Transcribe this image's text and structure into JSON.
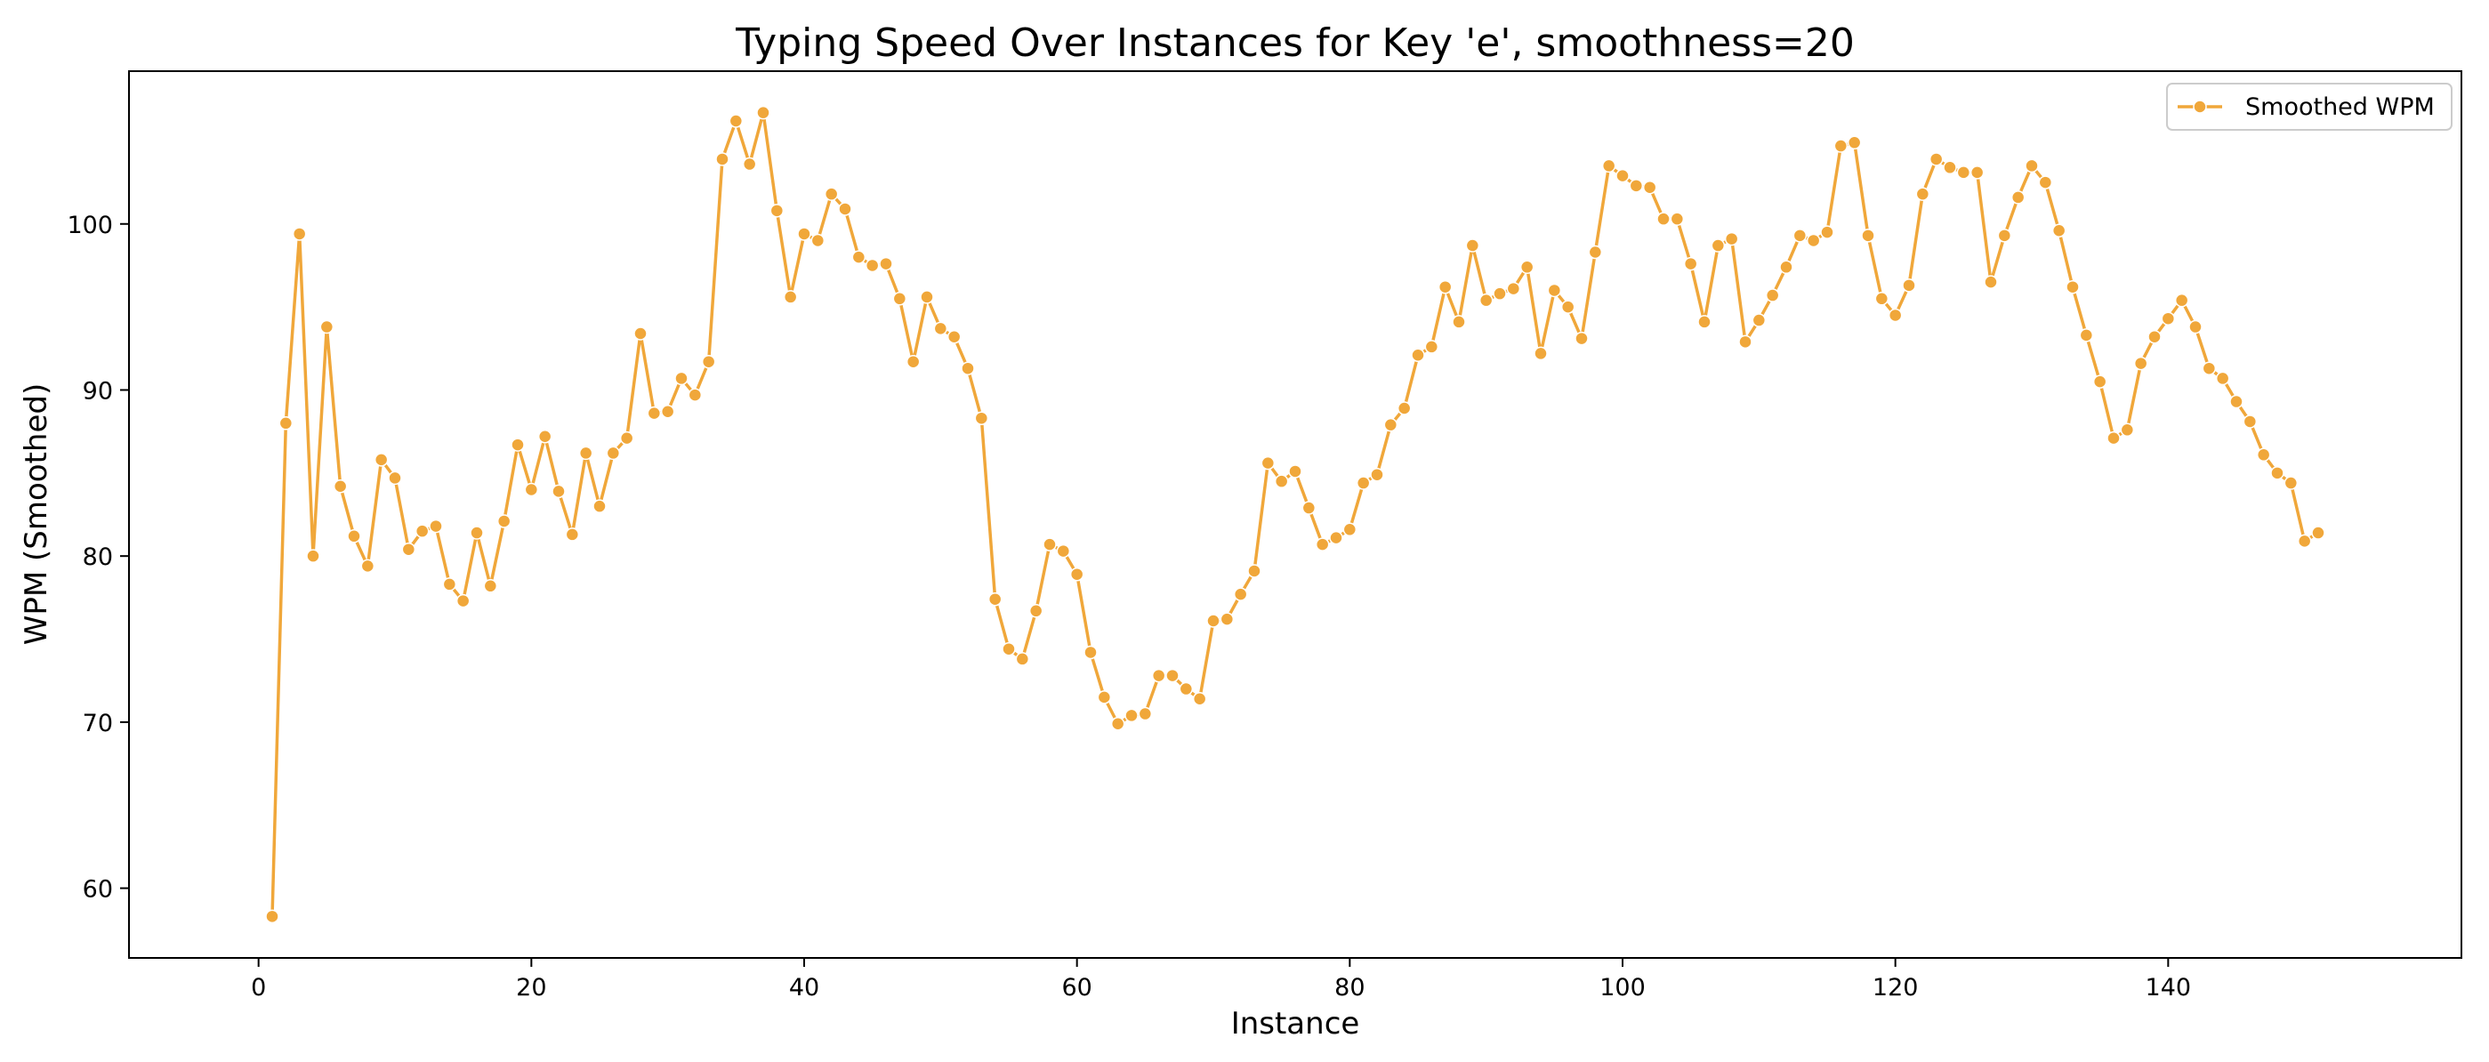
{
  "chart_data": {
    "type": "line",
    "title": "Typing Speed Over Instances for Key 'e', smoothness=20",
    "xlabel": "Instance",
    "ylabel": "WPM (Smoothed)",
    "xlim": [
      -9.5,
      161.5
    ],
    "ylim": [
      55.8,
      109.2
    ],
    "xticks": [
      0,
      20,
      40,
      60,
      80,
      100,
      120,
      140
    ],
    "yticks": [
      60,
      70,
      80,
      90,
      100
    ],
    "grid": false,
    "legend_position": "top-right",
    "color": "#F0A73A",
    "series": [
      {
        "name": "Smoothed WPM",
        "x": [
          1,
          2,
          3,
          4,
          5,
          6,
          7,
          8,
          9,
          10,
          11,
          12,
          13,
          14,
          15,
          16,
          17,
          18,
          19,
          20,
          21,
          22,
          23,
          24,
          25,
          26,
          27,
          28,
          29,
          30,
          31,
          32,
          33,
          34,
          35,
          36,
          37,
          38,
          39,
          40,
          41,
          42,
          43,
          44,
          45,
          46,
          47,
          48,
          49,
          50,
          51,
          52,
          53,
          54,
          55,
          56,
          57,
          58,
          59,
          60,
          61,
          62,
          63,
          64,
          65,
          66,
          67,
          68,
          69,
          70,
          71,
          72,
          73,
          74,
          75,
          76,
          77,
          78,
          79,
          80,
          81,
          82,
          83,
          84,
          85,
          86,
          87,
          88,
          89,
          90,
          91,
          92,
          93,
          94,
          95,
          96,
          97,
          98,
          99,
          100,
          101,
          102,
          103,
          104,
          105,
          106,
          107,
          108,
          109,
          110,
          111,
          112,
          113,
          114,
          115,
          116,
          117,
          118,
          119,
          120,
          121,
          122,
          123,
          124,
          125,
          126,
          127,
          128,
          129,
          130,
          131,
          132,
          133,
          134,
          135,
          136,
          137,
          138,
          139,
          140,
          141,
          142,
          143,
          144,
          145,
          146,
          147,
          148,
          149,
          150,
          151
        ],
        "y": [
          58.3,
          88.0,
          99.4,
          80.0,
          93.8,
          84.2,
          81.2,
          79.4,
          85.8,
          84.7,
          80.4,
          81.5,
          81.8,
          78.3,
          77.3,
          81.4,
          78.2,
          82.1,
          86.7,
          84.0,
          87.2,
          83.9,
          81.3,
          86.2,
          83.0,
          86.2,
          87.1,
          93.4,
          88.6,
          88.7,
          90.7,
          89.7,
          91.7,
          103.9,
          106.2,
          103.6,
          106.7,
          100.8,
          95.6,
          99.4,
          99.0,
          101.8,
          100.9,
          98.0,
          97.5,
          97.6,
          95.5,
          91.7,
          95.6,
          93.7,
          93.2,
          91.3,
          88.3,
          77.4,
          74.4,
          73.8,
          76.7,
          80.7,
          80.3,
          78.9,
          74.2,
          71.5,
          69.9,
          70.4,
          70.5,
          72.8,
          72.8,
          72.0,
          71.4,
          76.1,
          76.2,
          77.7,
          79.1,
          85.6,
          84.5,
          85.1,
          82.9,
          80.7,
          81.1,
          81.6,
          84.4,
          84.9,
          87.9,
          88.9,
          92.1,
          92.6,
          96.2,
          94.1,
          98.7,
          95.4,
          95.8,
          96.1,
          97.4,
          92.2,
          96.0,
          95.0,
          93.1,
          98.3,
          103.5,
          102.9,
          102.3,
          102.2,
          100.3,
          100.3,
          97.6,
          94.1,
          98.7,
          99.1,
          92.9,
          94.2,
          95.7,
          97.4,
          99.3,
          99.0,
          99.5,
          104.7,
          104.9,
          99.3,
          95.5,
          94.5,
          96.3,
          101.8,
          103.9,
          103.4,
          103.1,
          103.1,
          96.5,
          99.3,
          101.6,
          103.5,
          102.5,
          99.6,
          96.2,
          93.3,
          90.5,
          87.1,
          87.6,
          91.6,
          93.2,
          94.3,
          95.4,
          93.8,
          91.3,
          90.7,
          89.3,
          88.1,
          86.1,
          85.0,
          84.4,
          80.9,
          81.4
        ]
      }
    ]
  }
}
